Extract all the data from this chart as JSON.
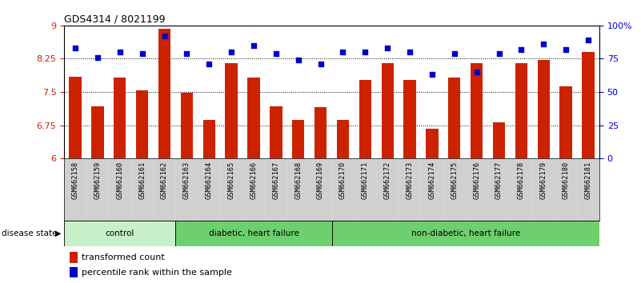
{
  "title": "GDS4314 / 8021199",
  "samples": [
    "GSM662158",
    "GSM662159",
    "GSM662160",
    "GSM662161",
    "GSM662162",
    "GSM662163",
    "GSM662164",
    "GSM662165",
    "GSM662166",
    "GSM662167",
    "GSM662168",
    "GSM662169",
    "GSM662170",
    "GSM662171",
    "GSM662172",
    "GSM662173",
    "GSM662174",
    "GSM662175",
    "GSM662176",
    "GSM662177",
    "GSM662178",
    "GSM662179",
    "GSM662180",
    "GSM662181"
  ],
  "bar_values": [
    7.85,
    7.18,
    7.82,
    7.54,
    8.92,
    7.48,
    6.87,
    8.15,
    7.82,
    7.18,
    6.87,
    7.15,
    6.87,
    7.78,
    8.15,
    7.78,
    6.68,
    7.82,
    8.15,
    6.82,
    8.15,
    8.22,
    7.62,
    8.4
  ],
  "dot_values": [
    83,
    76,
    80,
    79,
    92,
    79,
    71,
    80,
    85,
    79,
    74,
    71,
    80,
    80,
    83,
    80,
    63,
    79,
    65,
    79,
    82,
    86,
    82,
    89
  ],
  "groups_data": [
    {
      "label": "control",
      "start": 0,
      "end": 5,
      "color": "#c8f0c8"
    },
    {
      "label": "diabetic, heart failure",
      "start": 5,
      "end": 12,
      "color": "#6ecf6e"
    },
    {
      "label": "non-diabetic, heart failure",
      "start": 12,
      "end": 24,
      "color": "#6ecf6e"
    }
  ],
  "ylim_left": [
    6,
    9
  ],
  "ylim_right": [
    0,
    100
  ],
  "yticks_left": [
    6,
    6.75,
    7.5,
    8.25,
    9
  ],
  "ytick_labels_left": [
    "6",
    "6.75",
    "7.5",
    "8.25",
    "9"
  ],
  "ytick_labels_right": [
    "0",
    "25",
    "50",
    "75",
    "100%"
  ],
  "yticks_right": [
    0,
    25,
    50,
    75,
    100
  ],
  "bar_color": "#cc2200",
  "dot_color": "#0000cc",
  "bar_bottom": 6,
  "hlines": [
    6.75,
    7.5,
    8.25
  ],
  "disease_state_label": "disease state",
  "legend_bar": "transformed count",
  "legend_dot": "percentile rank within the sample",
  "xticklabel_bg": "#d0d0d0"
}
